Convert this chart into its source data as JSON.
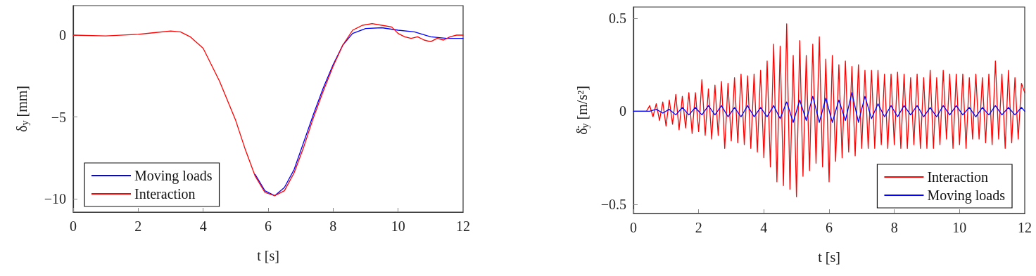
{
  "chart_data": [
    {
      "type": "line",
      "xlabel": "t [s]",
      "ylabel": "δ$_{y}$ [mm]",
      "xlim": [
        0,
        12
      ],
      "xticks": [
        0,
        2,
        4,
        6,
        8,
        10,
        12
      ],
      "ylim": [
        -10.8,
        1.8
      ],
      "yticks": [
        -10,
        -5,
        0
      ],
      "grid": false,
      "legend": "bottom left",
      "marker": "none",
      "line_style": "solid",
      "series": [
        {
          "name": "Moving loads",
          "color": "#0000ff",
          "x": [
            5.6,
            5.9,
            6.2,
            6.5,
            6.8,
            7.1,
            7.4,
            7.7,
            8,
            8.3,
            8.6,
            9,
            9.5,
            10,
            10.5,
            11,
            11.5,
            12
          ],
          "values": [
            -8.5,
            -9.5,
            -9.8,
            -9.3,
            -8.2,
            -6.5,
            -4.8,
            -3.2,
            -1.8,
            -0.6,
            0.1,
            0.4,
            0.45,
            0.3,
            0.2,
            -0.1,
            -0.2,
            -0.2
          ]
        },
        {
          "name": "Interaction",
          "color": "#ff0000",
          "x": [
            0,
            1,
            2,
            2.5,
            3,
            3.3,
            3.6,
            4,
            4.5,
            5,
            5.3,
            5.6,
            5.9,
            6.2,
            6.5,
            6.8,
            7.1,
            7.4,
            7.7,
            8,
            8.3,
            8.6,
            8.9,
            9.2,
            9.5,
            9.8,
            10,
            10.2,
            10.4,
            10.6,
            10.8,
            11,
            11.2,
            11.4,
            11.6,
            11.8,
            12
          ],
          "values": [
            0,
            -0.05,
            0.05,
            0.15,
            0.25,
            0.2,
            -0.1,
            -0.8,
            -2.8,
            -5.2,
            -7,
            -8.6,
            -9.6,
            -9.8,
            -9.5,
            -8.4,
            -6.8,
            -5,
            -3.4,
            -1.9,
            -0.6,
            0.3,
            0.6,
            0.7,
            0.6,
            0.5,
            0.1,
            -0.1,
            -0.2,
            -0.1,
            -0.3,
            -0.4,
            -0.2,
            -0.3,
            -0.1,
            0,
            0
          ]
        }
      ]
    },
    {
      "type": "line",
      "xlabel": "t [s]",
      "ylabel": "δ̈$_{y}$ [m/s²]",
      "xlim": [
        0,
        12
      ],
      "xticks": [
        0,
        2,
        4,
        6,
        8,
        10,
        12
      ],
      "ylim": [
        -0.55,
        0.56
      ],
      "yticks": [
        -0.5,
        0,
        0.5
      ],
      "grid": false,
      "legend": "bottom right",
      "marker": "none",
      "line_style": "solid",
      "series": [
        {
          "name": "Interaction",
          "color": "#ff0000",
          "x": [
            0,
            0.4,
            0.5,
            0.6,
            0.7,
            0.8,
            0.9,
            1,
            1.1,
            1.2,
            1.3,
            1.4,
            1.5,
            1.6,
            1.7,
            1.8,
            1.9,
            2,
            2.1,
            2.2,
            2.3,
            2.4,
            2.5,
            2.6,
            2.7,
            2.8,
            2.9,
            3,
            3.1,
            3.2,
            3.3,
            3.4,
            3.5,
            3.6,
            3.7,
            3.8,
            3.9,
            4,
            4.1,
            4.2,
            4.3,
            4.4,
            4.5,
            4.6,
            4.7,
            4.8,
            4.9,
            5,
            5.1,
            5.2,
            5.3,
            5.4,
            5.5,
            5.6,
            5.7,
            5.8,
            5.9,
            6,
            6.1,
            6.2,
            6.3,
            6.4,
            6.5,
            6.6,
            6.7,
            6.8,
            6.9,
            7,
            7.1,
            7.2,
            7.3,
            7.4,
            7.5,
            7.6,
            7.7,
            7.8,
            7.9,
            8,
            8.1,
            8.2,
            8.3,
            8.4,
            8.5,
            8.6,
            8.7,
            8.8,
            8.9,
            9,
            9.1,
            9.2,
            9.3,
            9.4,
            9.5,
            9.6,
            9.7,
            9.8,
            9.9,
            10,
            10.1,
            10.2,
            10.3,
            10.4,
            10.5,
            10.6,
            10.7,
            10.8,
            10.9,
            11,
            11.1,
            11.2,
            11.3,
            11.4,
            11.5,
            11.6,
            11.7,
            11.8,
            11.9,
            12
          ],
          "values": [
            0,
            0,
            0.03,
            -0.03,
            0.04,
            -0.05,
            0.05,
            -0.08,
            0.06,
            -0.07,
            0.09,
            -0.1,
            0.08,
            -0.09,
            0.1,
            -0.12,
            0.1,
            -0.11,
            0.17,
            -0.13,
            0.12,
            -0.15,
            0.14,
            -0.13,
            0.16,
            -0.2,
            0.15,
            -0.16,
            0.18,
            -0.17,
            0.2,
            -0.18,
            0.19,
            -0.2,
            0.2,
            -0.22,
            0.22,
            -0.25,
            0.27,
            -0.3,
            0.36,
            -0.38,
            0.35,
            -0.4,
            0.47,
            -0.42,
            0.3,
            -0.46,
            0.38,
            -0.35,
            0.3,
            -0.32,
            0.36,
            -0.28,
            0.4,
            -0.3,
            0.28,
            -0.38,
            0.3,
            -0.27,
            0.25,
            -0.25,
            0.27,
            -0.22,
            0.24,
            -0.24,
            0.25,
            -0.2,
            0.22,
            -0.2,
            0.22,
            -0.2,
            0.22,
            -0.18,
            0.2,
            -0.2,
            0.2,
            -0.18,
            0.21,
            -0.2,
            0.2,
            -0.2,
            0.18,
            -0.18,
            0.2,
            -0.2,
            0.18,
            -0.2,
            0.22,
            -0.2,
            0.18,
            -0.18,
            0.22,
            -0.15,
            0.2,
            -0.2,
            0.2,
            -0.18,
            0.2,
            -0.2,
            0.18,
            -0.15,
            0.2,
            -0.15,
            0.18,
            -0.17,
            0.2,
            -0.18,
            0.27,
            -0.15,
            0.2,
            -0.2,
            0.22,
            -0.17,
            0.18,
            -0.15,
            0.15,
            0.1
          ]
        },
        {
          "name": "Moving loads",
          "color": "#0000ff",
          "x": [
            0,
            0.5,
            0.7,
            0.9,
            1.1,
            1.3,
            1.5,
            1.7,
            1.9,
            2.1,
            2.3,
            2.5,
            2.7,
            2.9,
            3.1,
            3.3,
            3.5,
            3.7,
            3.9,
            4.1,
            4.3,
            4.5,
            4.7,
            4.9,
            5.1,
            5.3,
            5.5,
            5.7,
            5.9,
            6.1,
            6.3,
            6.5,
            6.7,
            6.9,
            7.1,
            7.3,
            7.5,
            7.7,
            7.9,
            8.1,
            8.3,
            8.5,
            8.7,
            8.9,
            9.1,
            9.3,
            9.5,
            9.7,
            9.9,
            10.1,
            10.3,
            10.5,
            10.7,
            10.9,
            11.1,
            11.3,
            11.5,
            11.7,
            11.9,
            12
          ],
          "values": [
            0,
            0,
            0.01,
            -0.01,
            0.01,
            -0.02,
            0.02,
            -0.02,
            0.02,
            -0.02,
            0.03,
            -0.02,
            0.03,
            -0.03,
            0.02,
            -0.03,
            0.03,
            -0.03,
            0.02,
            -0.03,
            0.03,
            -0.04,
            0.05,
            -0.06,
            0.06,
            -0.05,
            0.08,
            -0.06,
            0.07,
            -0.06,
            0.06,
            -0.05,
            0.1,
            -0.06,
            0.08,
            -0.04,
            0.04,
            -0.03,
            0.03,
            -0.03,
            0.03,
            -0.02,
            0.03,
            -0.03,
            0.02,
            -0.03,
            0.03,
            -0.02,
            0.03,
            -0.02,
            0.02,
            -0.03,
            0.02,
            -0.02,
            0.03,
            -0.02,
            0.02,
            -0.02,
            0.02,
            0
          ]
        }
      ]
    }
  ]
}
